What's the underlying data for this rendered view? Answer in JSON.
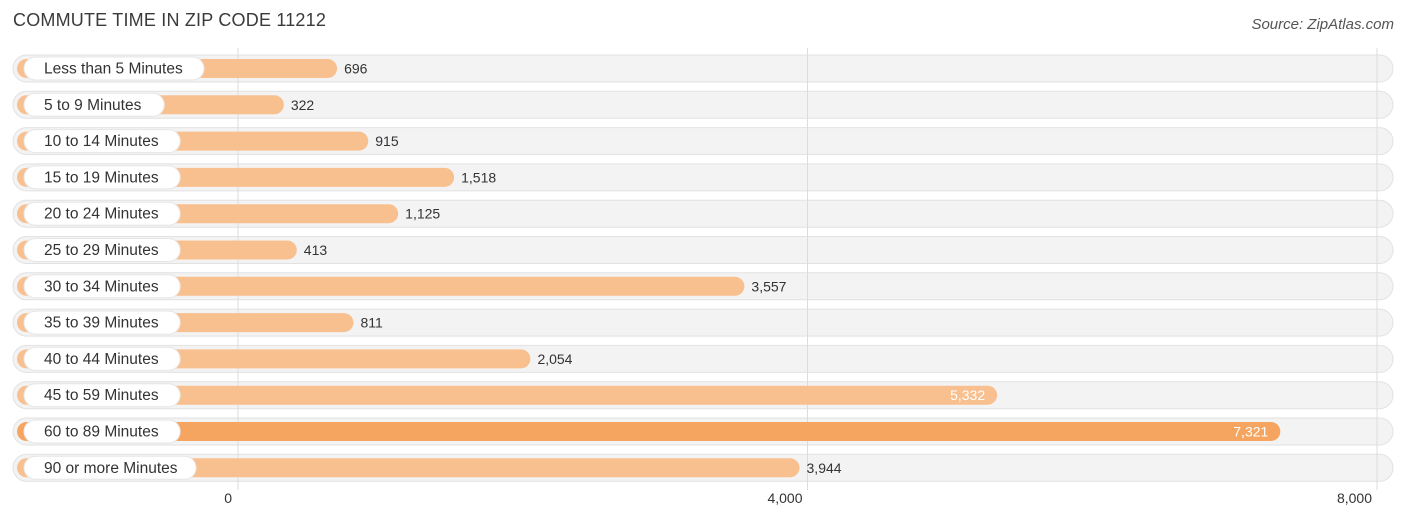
{
  "chart_data": {
    "type": "bar",
    "orientation": "horizontal",
    "title": "COMMUTE TIME IN ZIP CODE 11212",
    "source": "Source: ZipAtlas.com",
    "categories": [
      "Less than 5 Minutes",
      "5 to 9 Minutes",
      "10 to 14 Minutes",
      "15 to 19 Minutes",
      "20 to 24 Minutes",
      "25 to 29 Minutes",
      "30 to 34 Minutes",
      "35 to 39 Minutes",
      "40 to 44 Minutes",
      "45 to 59 Minutes",
      "60 to 89 Minutes",
      "90 or more Minutes"
    ],
    "values": [
      696,
      322,
      915,
      1518,
      1125,
      413,
      3557,
      811,
      2054,
      5332,
      7321,
      3944
    ],
    "value_labels": [
      "696",
      "322",
      "915",
      "1,518",
      "1,125",
      "413",
      "3,557",
      "811",
      "2,054",
      "5,332",
      "7,321",
      "3,944"
    ],
    "xlim": [
      0,
      8000
    ],
    "ticks": [
      0,
      4000,
      8000
    ],
    "tick_labels": [
      "0",
      "4,000",
      "8,000"
    ],
    "grid": true,
    "colors": {
      "bar": "#f9c08f",
      "bar_strong": "#f5a55f",
      "track": "#efefef",
      "label_dark": "#333333",
      "label_light": "#ffffff"
    }
  }
}
